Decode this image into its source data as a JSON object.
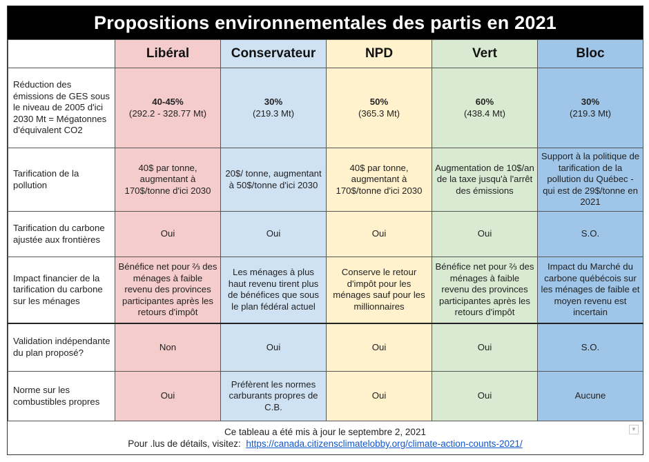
{
  "title": "Propositions environnementales des partis en 2021",
  "parties": [
    "Libéral",
    "Conservateur",
    "NPD",
    "Vert",
    "Bloc"
  ],
  "rows": [
    {
      "label": "Réduction des émissions de GES sous le niveau de 2005 d'ici 2030 Mt = Mégatonnes d'équivalent CO2",
      "cells": [
        {
          "bold": "40-45%",
          "text": "(292.2 - 328.77 Mt)"
        },
        {
          "bold": "30%",
          "text": "(219.3 Mt)"
        },
        {
          "bold": "50%",
          "text": "(365.3 Mt)"
        },
        {
          "bold": "60%",
          "text": "(438.4 Mt)"
        },
        {
          "bold": "30%",
          "text": "(219.3 Mt)"
        }
      ]
    },
    {
      "label": "Tarification de la pollution",
      "cells": [
        {
          "bold": "",
          "text": "40$ par tonne, augmentant à 170$/tonne d'ici 2030"
        },
        {
          "bold": "",
          "text": "20$/ tonne, augmentant à 50$/tonne d'ici 2030"
        },
        {
          "bold": "",
          "text": "40$ par tonne, augmentant à 170$/tonne d'ici 2030"
        },
        {
          "bold": "",
          "text": "Augmentation de 10$/an de la taxe jusqu'à l'arrêt des émissions"
        },
        {
          "bold": "",
          "text": "Support à la politique de tarification de la pollution du Québec - qui est de 29$/tonne en 2021"
        }
      ]
    },
    {
      "label": "Tarification du carbone ajustée aux frontières",
      "cells": [
        {
          "bold": "",
          "text": "Oui"
        },
        {
          "bold": "",
          "text": "Oui"
        },
        {
          "bold": "",
          "text": "Oui"
        },
        {
          "bold": "",
          "text": "Oui"
        },
        {
          "bold": "",
          "text": "S.O."
        }
      ]
    },
    {
      "label": "Impact financier de la tarification du carbone sur les ménages",
      "cells": [
        {
          "bold": "",
          "text": "Bénéfice net pour ⅔ des ménages à faible revenu des provinces participantes après les retours d'impôt"
        },
        {
          "bold": "",
          "text": "Les ménages à plus haut revenu tirent plus de bénéfices que sous le plan fédéral actuel"
        },
        {
          "bold": "",
          "text": "Conserve le retour d'impôt pour les ménages sauf pour les millionnaires"
        },
        {
          "bold": "",
          "text": "Bénéfice net pour ⅔ des ménages à faible revenu des provinces participantes après les retours d'impôt"
        },
        {
          "bold": "",
          "text": "Impact du Marché du carbone québécois sur les ménages de faible et moyen revenu est incertain"
        }
      ]
    },
    {
      "label": "Validation indépendante du plan proposé?",
      "cells": [
        {
          "bold": "",
          "text": "Non"
        },
        {
          "bold": "",
          "text": "Oui"
        },
        {
          "bold": "",
          "text": "Oui"
        },
        {
          "bold": "",
          "text": "Oui"
        },
        {
          "bold": "",
          "text": "S.O."
        }
      ]
    },
    {
      "label": "Norme sur les combustibles propres",
      "cells": [
        {
          "bold": "",
          "text": "Oui"
        },
        {
          "bold": "",
          "text": "Préfèrent les normes carburants propres de C.B."
        },
        {
          "bold": "",
          "text": "Oui"
        },
        {
          "bold": "",
          "text": "Oui"
        },
        {
          "bold": "",
          "text": "Aucune"
        }
      ]
    }
  ],
  "footer": {
    "updated": "Ce tableau a été mis à jour le septembre 2, 2021",
    "details_prefix": "Pour .lus de détails, visitez:",
    "link_text": "https://canada.citizensclimatelobby.org/climate-action-counts-2021/"
  },
  "colors": {
    "liberal": "#f4cccc",
    "conservateur": "#cfe2f3",
    "npd": "#fff2cc",
    "vert": "#d9ead3",
    "bloc": "#9fc5e8",
    "title_bg": "#000000",
    "link": "#1155cc"
  }
}
